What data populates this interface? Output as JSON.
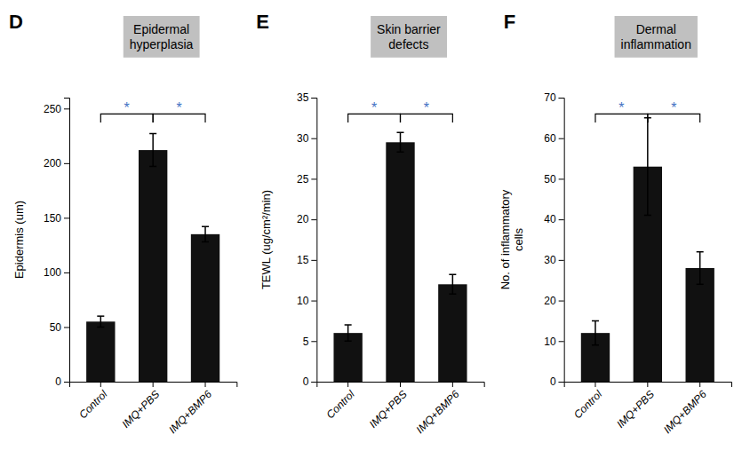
{
  "chart_data": [
    {
      "type": "bar",
      "title": "D",
      "subtitle": "Epidermal\nhyperplasia",
      "ylabel": "Epidermis (um)",
      "categories": [
        "Control",
        "IMQ+PBS",
        "IMQ+BMP6"
      ],
      "values": [
        55,
        212,
        135
      ],
      "errors": [
        5,
        15,
        7
      ],
      "color": "#111111",
      "ylim": [
        0,
        260
      ],
      "yticks": [
        0,
        50,
        100,
        150,
        200,
        250
      ],
      "grid": false,
      "annotations": [
        {
          "text": "*",
          "between": [
            "Control",
            "IMQ+PBS"
          ],
          "y": 245,
          "color": "#4472C4",
          "line_color": "#000000"
        },
        {
          "text": "*",
          "between": [
            "IMQ+PBS",
            "IMQ+BMP6"
          ],
          "y": 245,
          "color": "#4472C4",
          "line_color": "#000000"
        }
      ]
    },
    {
      "type": "bar",
      "title": "E",
      "subtitle": "Skin barrier\ndefects",
      "ylabel": "TEWL (ug/cm²/min)",
      "categories": [
        "Control",
        "IMQ+PBS",
        "IMQ+BMP6"
      ],
      "values": [
        6,
        29.5,
        12
      ],
      "errors": [
        1.0,
        1.2,
        1.2
      ],
      "color": "#111111",
      "ylim": [
        0,
        35
      ],
      "yticks": [
        0,
        5,
        10,
        15,
        20,
        25,
        30,
        35
      ],
      "grid": false,
      "annotations": [
        {
          "text": "*",
          "between": [
            "Control",
            "IMQ+PBS"
          ],
          "y": 33,
          "color": "#4472C4",
          "line_color": "#000000"
        },
        {
          "text": "*",
          "between": [
            "IMQ+PBS",
            "IMQ+BMP6"
          ],
          "y": 33,
          "color": "#4472C4",
          "line_color": "#000000"
        }
      ]
    },
    {
      "type": "bar",
      "title": "F",
      "subtitle": "Dermal\ninflammation",
      "ylabel": "No. of inflammatory\ncells",
      "categories": [
        "Control",
        "IMQ+PBS",
        "IMQ+BMP6"
      ],
      "values": [
        12,
        53,
        28
      ],
      "errors": [
        3,
        12,
        4
      ],
      "color": "#111111",
      "ylim": [
        0,
        70
      ],
      "yticks": [
        0,
        10,
        20,
        30,
        40,
        50,
        60,
        70
      ],
      "grid": false,
      "annotations": [
        {
          "text": "*",
          "between": [
            "Control",
            "IMQ+PBS"
          ],
          "y": 66,
          "color": "#4472C4",
          "line_color": "#000000"
        },
        {
          "text": "*",
          "between": [
            "IMQ+PBS",
            "IMQ+BMP6"
          ],
          "y": 66,
          "color": "#4472C4",
          "line_color": "#000000"
        }
      ]
    }
  ]
}
